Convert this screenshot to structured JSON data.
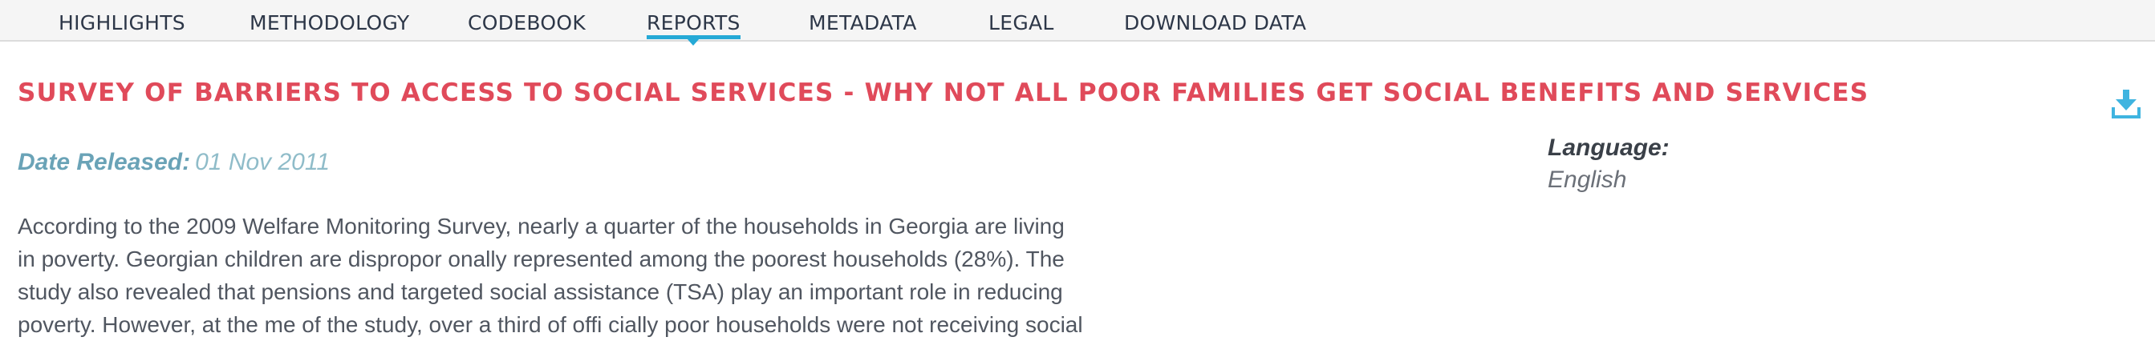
{
  "nav": {
    "tabs": [
      {
        "label": "HIGHLIGHTS",
        "active": false
      },
      {
        "label": "METHODOLOGY",
        "active": false
      },
      {
        "label": "CODEBOOK",
        "active": false
      },
      {
        "label": "REPORTS",
        "active": true
      },
      {
        "label": "METADATA",
        "active": false
      },
      {
        "label": "LEGAL",
        "active": false
      },
      {
        "label": "DOWNLOAD DATA",
        "active": false
      }
    ]
  },
  "report": {
    "title": "SURVEY OF BARRIERS TO ACCESS TO SOCIAL SERVICES - WHY NOT ALL POOR FAMILIES GET SOCIAL BENEFITS AND SERVICES",
    "date_label": "Date Released:",
    "date_value": "01 Nov 2011",
    "language_label": "Language:",
    "language_value": "English",
    "abstract_lines": [
      "According to the 2009 Welfare Monitoring Survey, nearly a quarter of the households in Georgia are living",
      "in poverty. Georgian children are dispropor onally represented among the poorest households (28%). The",
      "study also revealed that pensions and targeted social assistance (TSA) play an important role in reducing",
      "poverty. However, at the me of the study, over a third of offi cially poor households were not receiving social"
    ]
  },
  "icons": {
    "download": "download-icon"
  },
  "colors": {
    "accent": "#25a9d6",
    "title": "#e04a5a",
    "date": "#6aa3b7"
  }
}
